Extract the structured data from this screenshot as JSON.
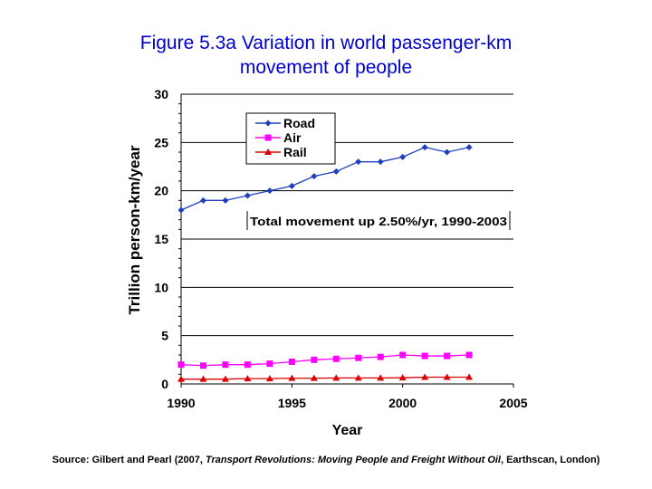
{
  "chart_data": {
    "type": "line",
    "title_line1": "Figure 5.3a Variation in world passenger-km",
    "title_line2": "movement of people",
    "xlabel": "Year",
    "ylabel": "Trillion person-km/year",
    "xlim": [
      1990,
      2005
    ],
    "ylim": [
      0,
      30
    ],
    "x_ticks": [
      "1990",
      "1995",
      "2000",
      "2005"
    ],
    "y_ticks": [
      "0",
      "5",
      "10",
      "15",
      "20",
      "25",
      "30"
    ],
    "annotation": "Total movement up 2.50%/yr, 1990-2003",
    "legend_position": "top-left",
    "x": [
      1990,
      1991,
      1992,
      1993,
      1994,
      1995,
      1996,
      1997,
      1998,
      1999,
      2000,
      2001,
      2002,
      2003
    ],
    "series": [
      {
        "name": "Road",
        "color": "#1f3fbf",
        "marker": "diamond",
        "values": [
          18.0,
          19.0,
          19.0,
          19.5,
          20.0,
          20.5,
          21.5,
          22.0,
          23.0,
          23.0,
          23.5,
          24.5,
          24.0,
          24.5
        ]
      },
      {
        "name": "Air",
        "color": "#ff00ff",
        "marker": "square",
        "values": [
          2.0,
          1.9,
          2.0,
          2.0,
          2.1,
          2.3,
          2.5,
          2.6,
          2.7,
          2.8,
          3.0,
          2.9,
          2.9,
          3.0
        ]
      },
      {
        "name": "Rail",
        "color": "#dd0000",
        "marker": "triangle",
        "values": [
          0.5,
          0.5,
          0.5,
          0.55,
          0.55,
          0.6,
          0.6,
          0.62,
          0.62,
          0.62,
          0.65,
          0.7,
          0.7,
          0.7
        ]
      }
    ]
  },
  "source": {
    "prefix": "Source: Gilbert and Pearl (2007, ",
    "book": "Transport Revolutions: Moving People and Freight Without Oil",
    "suffix": ", Earthscan, London)"
  }
}
